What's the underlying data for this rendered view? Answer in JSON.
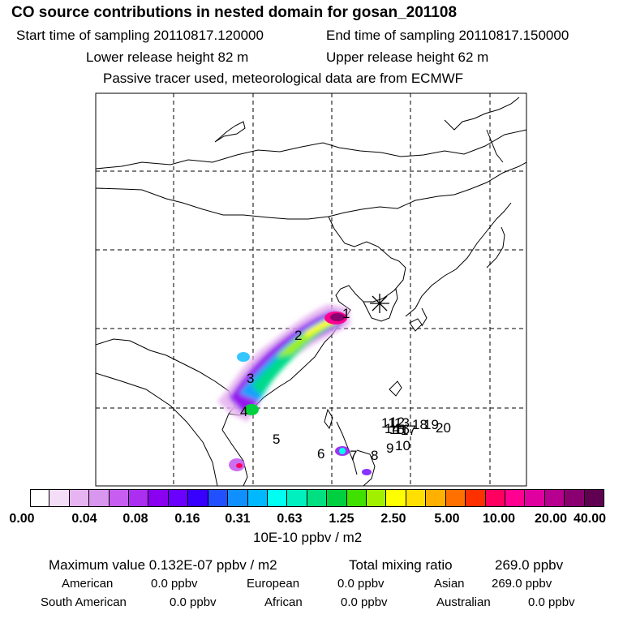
{
  "header": {
    "title": "CO  source contributions in nested domain for gosan_201108",
    "start_label": "Start time of sampling 20110817.120000",
    "end_label": "End time of sampling 20110817.150000",
    "lower_label": "Lower release height   82 m",
    "upper_label": "Upper release height   62 m",
    "note": "Passive tracer used, meteorological data are from ECMWF"
  },
  "map": {
    "receptor_icon": "asterisk-icon",
    "source_labels": [
      "1",
      "2",
      "3",
      "4",
      "5",
      "6",
      "7",
      "8",
      "9",
      "10",
      "11",
      "12",
      "13",
      "14",
      "15",
      "16",
      "17",
      "18",
      "19",
      "20"
    ]
  },
  "colorbar": {
    "colors": [
      "#ffffff",
      "#f4ddf7",
      "#e6b4f0",
      "#d996ee",
      "#c75ef0",
      "#ac2ef0",
      "#8a00f0",
      "#6a00ff",
      "#3700ff",
      "#2050ff",
      "#1090ff",
      "#00b8ff",
      "#00fff0",
      "#00f0c0",
      "#00e080",
      "#00d040",
      "#40e000",
      "#a0f000",
      "#ffff00",
      "#ffe000",
      "#ffb000",
      "#ff7000",
      "#ff3000",
      "#ff0060",
      "#ff0090",
      "#e000a0",
      "#b80090",
      "#8a0070",
      "#600050"
    ],
    "tick_labels": [
      "0.00",
      "0.04",
      "0.08",
      "0.16",
      "0.31",
      "0.63",
      "1.25",
      "2.50",
      "5.00",
      "10.00",
      "20.00",
      "40.00"
    ],
    "unit_label": "10E-10 ppbv / m2"
  },
  "summary": {
    "max_label": "Maximum value  0.132E-07 ppbv / m2",
    "total_label": "Total mixing ratio",
    "total_value": "269.0 ppbv",
    "regions": [
      {
        "name": "American",
        "value": "0.0 ppbv"
      },
      {
        "name": "European",
        "value": "0.0 ppbv"
      },
      {
        "name": "Asian",
        "value": "269.0 ppbv"
      },
      {
        "name": "South American",
        "value": "0.0 ppbv"
      },
      {
        "name": "African",
        "value": "0.0 ppbv"
      },
      {
        "name": "Australian",
        "value": "0.0 ppbv"
      }
    ]
  }
}
